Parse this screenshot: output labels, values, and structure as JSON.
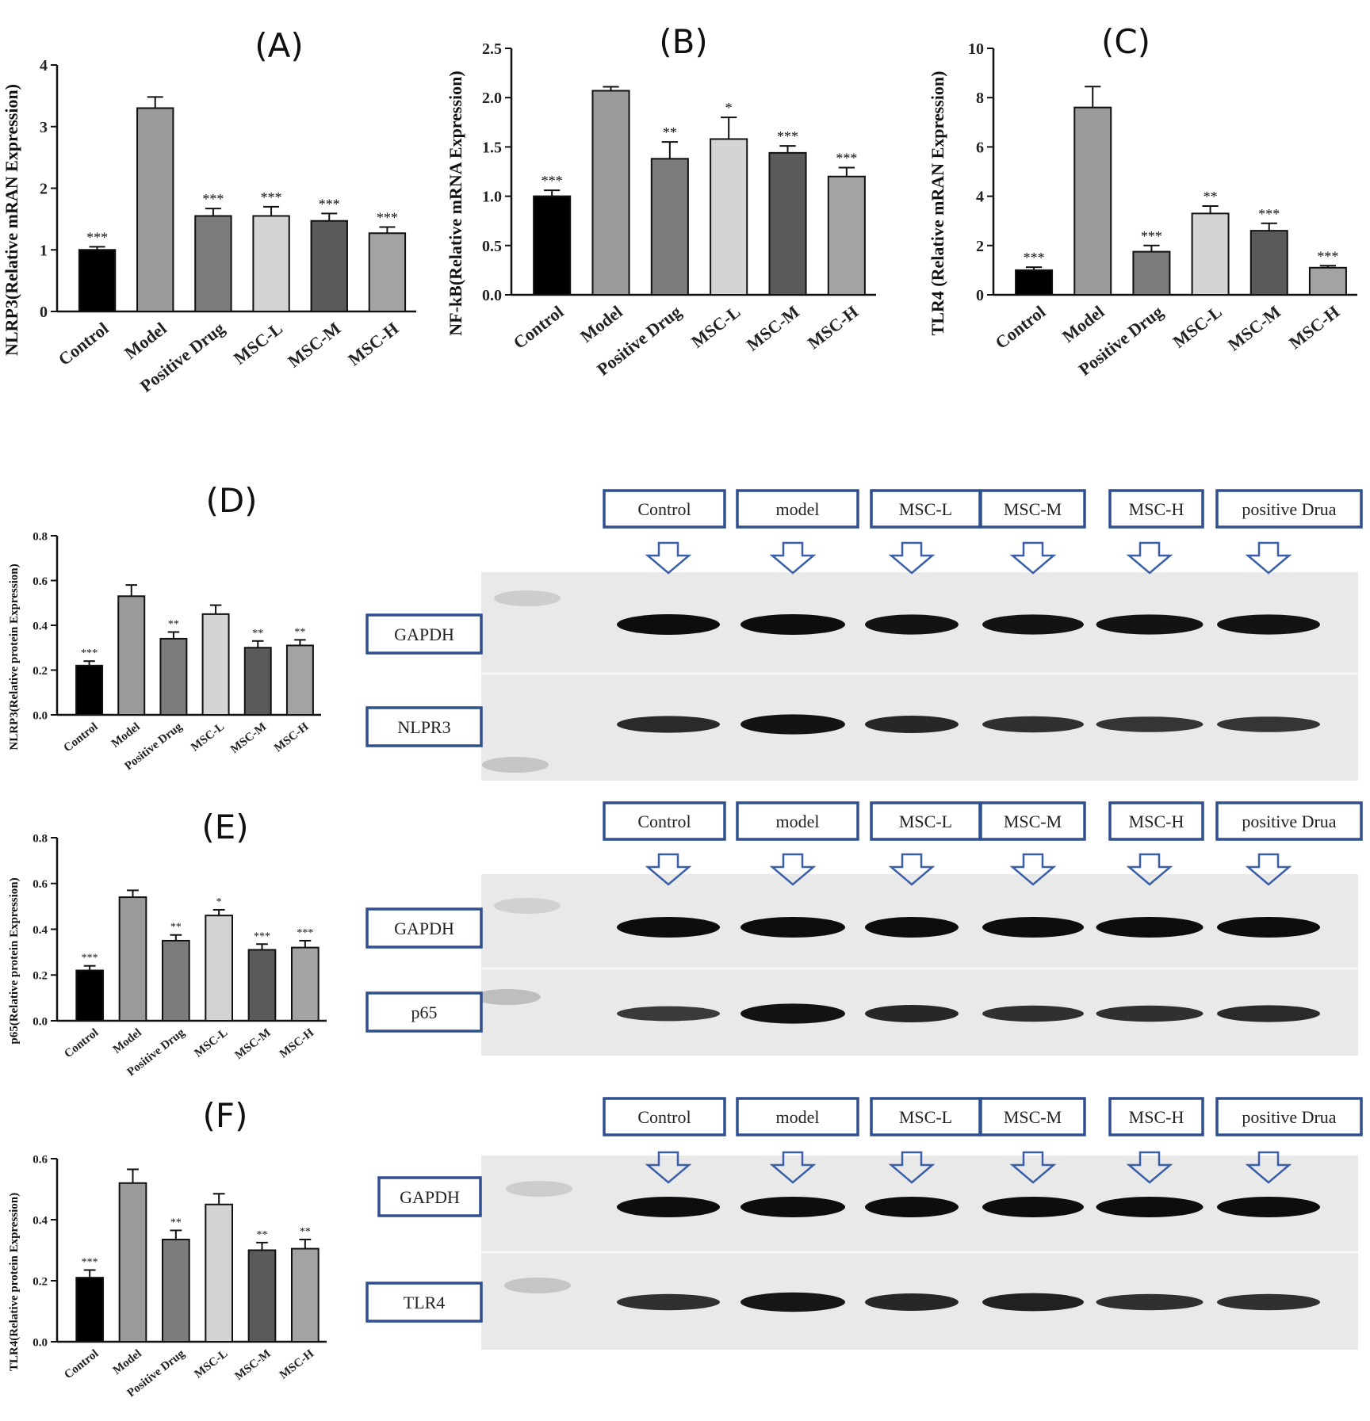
{
  "panels": [
    {
      "letter": "(A)"
    },
    {
      "letter": "(B)"
    },
    {
      "letter": "(C)"
    },
    {
      "letter": "(D)"
    },
    {
      "letter": "(E)"
    },
    {
      "letter": "(F)"
    }
  ],
  "chart_data": [
    {
      "type": "bar",
      "panel": "(A)",
      "categories": [
        "Control",
        "Model",
        "Positive Drug",
        "MSC-L",
        "MSC-M",
        "MSC-H"
      ],
      "values": [
        1.0,
        3.3,
        1.55,
        1.55,
        1.47,
        1.27
      ],
      "errors": [
        0.05,
        0.18,
        0.12,
        0.15,
        0.12,
        0.1
      ],
      "significance": [
        "***",
        "",
        "***",
        "***",
        "***",
        "***"
      ],
      "ylabel": "NLRP3(Relative mRAN Expression)",
      "ylim": [
        0,
        4
      ],
      "yticks": [
        "0",
        "1",
        "2",
        "3",
        "4"
      ],
      "colors": [
        "#000000",
        "#9a9a9a",
        "#7c7c7c",
        "#d4d4d4",
        "#5a5a5a",
        "#a3a3a3"
      ]
    },
    {
      "type": "bar",
      "panel": "(B)",
      "categories": [
        "Control",
        "Model",
        "Positive Drug",
        "MSC-L",
        "MSC-M",
        "MSC-H"
      ],
      "values": [
        1.0,
        2.07,
        1.38,
        1.58,
        1.44,
        1.2
      ],
      "errors": [
        0.06,
        0.04,
        0.17,
        0.22,
        0.07,
        0.09
      ],
      "significance": [
        "***",
        "",
        "**",
        "*",
        "***",
        "***"
      ],
      "ylabel": "NF-kB(Relative mRNA Expression)",
      "ylim": [
        0,
        2.5
      ],
      "yticks": [
        "0.0",
        "0.5",
        "1.0",
        "1.5",
        "2.0",
        "2.5"
      ],
      "colors": [
        "#000000",
        "#9a9a9a",
        "#7c7c7c",
        "#d4d4d4",
        "#5a5a5a",
        "#a3a3a3"
      ]
    },
    {
      "type": "bar",
      "panel": "(C)",
      "categories": [
        "Control",
        "Model",
        "Positive Drug",
        "MSC-L",
        "MSC-M",
        "MSC-H"
      ],
      "values": [
        1.0,
        7.6,
        1.75,
        3.3,
        2.6,
        1.1
      ],
      "errors": [
        0.12,
        0.85,
        0.25,
        0.3,
        0.3,
        0.08
      ],
      "significance": [
        "***",
        "",
        "***",
        "**",
        "***",
        "***"
      ],
      "ylabel": "TLR4 (Relative mRAN Expression)",
      "ylim": [
        0,
        10
      ],
      "yticks": [
        "0",
        "2",
        "4",
        "6",
        "8",
        "10"
      ],
      "colors": [
        "#000000",
        "#9a9a9a",
        "#7c7c7c",
        "#d4d4d4",
        "#5a5a5a",
        "#a3a3a3"
      ]
    },
    {
      "type": "bar",
      "panel": "(D)",
      "categories": [
        "Control",
        "Model",
        "Positive Drug",
        "MSC-L",
        "MSC-M",
        "MSC-H"
      ],
      "values": [
        0.22,
        0.53,
        0.34,
        0.45,
        0.3,
        0.31
      ],
      "errors": [
        0.02,
        0.05,
        0.03,
        0.04,
        0.03,
        0.025
      ],
      "significance": [
        "***",
        "",
        "**",
        "",
        "**",
        "**"
      ],
      "ylabel": "NLRP3(Relative protein Expression)",
      "ylim": [
        0,
        0.8
      ],
      "yticks": [
        "0.0",
        "0.2",
        "0.4",
        "0.6",
        "0.8"
      ],
      "colors": [
        "#000000",
        "#9a9a9a",
        "#7c7c7c",
        "#d4d4d4",
        "#5a5a5a",
        "#a3a3a3"
      ]
    },
    {
      "type": "bar",
      "panel": "(E)",
      "categories": [
        "Control",
        "Model",
        "Positive Drug",
        "MSC-L",
        "MSC-M",
        "MSC-H"
      ],
      "values": [
        0.22,
        0.54,
        0.35,
        0.46,
        0.31,
        0.32
      ],
      "errors": [
        0.02,
        0.03,
        0.025,
        0.025,
        0.025,
        0.03
      ],
      "significance": [
        "***",
        "",
        "**",
        "*",
        "***",
        "***"
      ],
      "ylabel": "p65(Relative protein Expression)",
      "ylim": [
        0,
        0.8
      ],
      "yticks": [
        "0.0",
        "0.2",
        "0.4",
        "0.6",
        "0.8"
      ],
      "colors": [
        "#000000",
        "#9a9a9a",
        "#7c7c7c",
        "#d4d4d4",
        "#5a5a5a",
        "#a3a3a3"
      ]
    },
    {
      "type": "bar",
      "panel": "(F)",
      "categories": [
        "Control",
        "Model",
        "Positive Drug",
        "MSC-L",
        "MSC-M",
        "MSC-H"
      ],
      "values": [
        0.21,
        0.52,
        0.335,
        0.45,
        0.3,
        0.305
      ],
      "errors": [
        0.025,
        0.045,
        0.03,
        0.035,
        0.025,
        0.03
      ],
      "significance": [
        "***",
        "",
        "**",
        "",
        "**",
        "**"
      ],
      "ylabel": "TLR4(Relative protein Expression)",
      "ylim": [
        0,
        0.6
      ],
      "yticks": [
        "0.0",
        "0.2",
        "0.4",
        "0.6"
      ],
      "colors": [
        "#000000",
        "#9a9a9a",
        "#7c7c7c",
        "#d4d4d4",
        "#5a5a5a",
        "#a3a3a3"
      ]
    }
  ],
  "blots": [
    {
      "lane_labels": [
        "Control",
        "model",
        "MSC-L",
        "MSC-M",
        "MSC-H",
        "positive Drua"
      ],
      "rows": [
        {
          "label": "GAPDH",
          "intensity": [
            1.0,
            1.0,
            0.95,
            0.95,
            0.95,
            0.95
          ]
        },
        {
          "label": "NLPR3",
          "intensity": [
            0.7,
            0.95,
            0.75,
            0.65,
            0.6,
            0.6
          ]
        }
      ]
    },
    {
      "lane_labels": [
        "Control",
        "model",
        "MSC-L",
        "MSC-M",
        "MSC-H",
        "positive Drua"
      ],
      "rows": [
        {
          "label": "GAPDH",
          "intensity": [
            1.0,
            1.0,
            1.0,
            1.0,
            1.0,
            1.0
          ]
        },
        {
          "label": "p65",
          "intensity": [
            0.55,
            0.95,
            0.75,
            0.65,
            0.65,
            0.7
          ]
        }
      ]
    },
    {
      "lane_labels": [
        "Control",
        "model",
        "MSC-L",
        "MSC-M",
        "MSC-H",
        "positive Drua"
      ],
      "rows": [
        {
          "label": "GAPDH",
          "intensity": [
            1.0,
            1.0,
            1.0,
            1.0,
            1.0,
            1.0
          ]
        },
        {
          "label": "TLR4",
          "intensity": [
            0.65,
            0.9,
            0.75,
            0.8,
            0.65,
            0.65
          ]
        }
      ]
    }
  ]
}
